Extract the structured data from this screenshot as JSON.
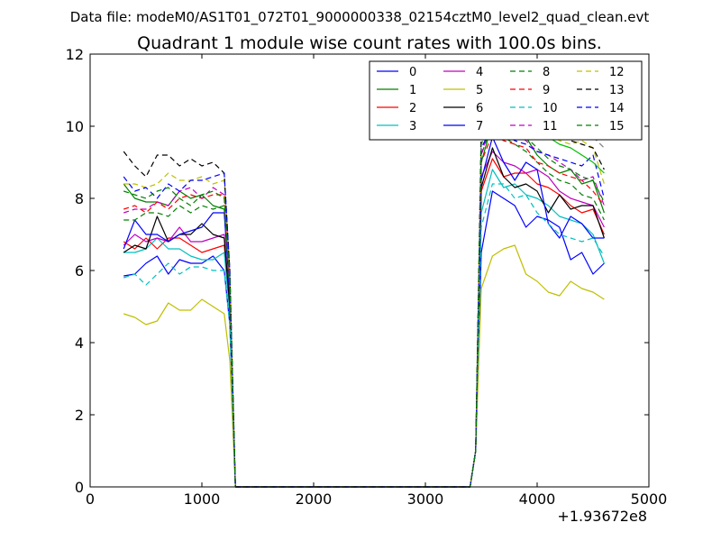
{
  "chart_data": {
    "type": "line",
    "suptitle": "Data file: modeM0/AS1T01_072T01_9000000338_02154cztM0_level2_quad_clean.evt",
    "title": "Quadrant 1 module wise count rates with 100.0s bins.",
    "xlabel": "",
    "ylabel": "",
    "x_offset_label": "+1.93672e8",
    "xlim": [
      0,
      5000
    ],
    "ylim": [
      0,
      12
    ],
    "x_ticks": [
      0,
      1000,
      2000,
      3000,
      4000,
      5000
    ],
    "y_ticks": [
      0,
      2,
      4,
      6,
      8,
      10,
      12
    ],
    "x_tick_labels": [
      "0",
      "1000",
      "2000",
      "3000",
      "4000",
      "5000"
    ],
    "y_tick_labels": [
      "0",
      "2",
      "4",
      "6",
      "8",
      "10",
      "12"
    ],
    "legend_position": "upper-right",
    "legend_columns": 4,
    "grid": false,
    "x": [
      300,
      400,
      500,
      600,
      700,
      800,
      900,
      1000,
      1100,
      1200,
      1250,
      1300,
      1400,
      1500,
      1600,
      1700,
      1800,
      1900,
      2000,
      2100,
      2200,
      2300,
      2400,
      2500,
      2600,
      2700,
      2800,
      2900,
      3000,
      3100,
      3200,
      3300,
      3400,
      3450,
      3500,
      3600,
      3700,
      3800,
      3900,
      4000,
      4100,
      4200,
      4300,
      4400,
      4500,
      4600
    ],
    "series": [
      {
        "name": "0",
        "color": "#0000ff",
        "dash": "solid",
        "values": [
          5.85,
          5.9,
          6.2,
          6.4,
          5.9,
          6.3,
          6.2,
          6.2,
          6.4,
          6.0,
          4.5,
          0,
          0,
          0,
          0,
          0,
          0,
          0,
          0,
          0,
          0,
          0,
          0,
          0,
          0,
          0,
          0,
          0,
          0,
          0,
          0,
          0,
          0,
          1,
          6.5,
          8.2,
          8.0,
          7.8,
          7.2,
          7.5,
          7.4,
          7.2,
          6.3,
          6.5,
          5.9,
          6.2
        ]
      },
      {
        "name": "1",
        "color": "#008000",
        "dash": "solid",
        "values": [
          8.4,
          8.0,
          7.9,
          7.9,
          7.8,
          8.2,
          8.0,
          8.1,
          7.8,
          7.7,
          5.5,
          0,
          0,
          0,
          0,
          0,
          0,
          0,
          0,
          0,
          0,
          0,
          0,
          0,
          0,
          0,
          0,
          0,
          0,
          0,
          0,
          0,
          0,
          1,
          9.0,
          10.1,
          9.8,
          10.0,
          9.7,
          9.2,
          8.9,
          8.7,
          8.8,
          8.4,
          8.5,
          7.6
        ]
      },
      {
        "name": "2",
        "color": "#ff0000",
        "dash": "solid",
        "values": [
          6.8,
          6.6,
          6.9,
          6.6,
          6.9,
          6.9,
          6.7,
          6.5,
          6.6,
          6.7,
          5.0,
          0,
          0,
          0,
          0,
          0,
          0,
          0,
          0,
          0,
          0,
          0,
          0,
          0,
          0,
          0,
          0,
          0,
          0,
          0,
          0,
          0,
          0,
          1,
          8.2,
          9.1,
          8.6,
          8.7,
          8.7,
          8.4,
          8.3,
          8.1,
          7.8,
          7.6,
          7.7,
          7.0
        ]
      },
      {
        "name": "3",
        "color": "#00bfbf",
        "dash": "solid",
        "values": [
          6.5,
          6.5,
          6.6,
          6.9,
          6.6,
          6.6,
          6.4,
          6.3,
          6.3,
          6.5,
          4.8,
          0,
          0,
          0,
          0,
          0,
          0,
          0,
          0,
          0,
          0,
          0,
          0,
          0,
          0,
          0,
          0,
          0,
          0,
          0,
          0,
          0,
          0,
          1,
          7.6,
          8.8,
          8.3,
          8.4,
          8.1,
          8.0,
          7.8,
          7.5,
          7.4,
          7.3,
          7.0,
          6.2
        ]
      },
      {
        "name": "4",
        "color": "#bf00bf",
        "dash": "solid",
        "values": [
          6.7,
          7.0,
          6.8,
          6.9,
          6.8,
          7.2,
          6.8,
          6.8,
          6.9,
          7.0,
          5.0,
          0,
          0,
          0,
          0,
          0,
          0,
          0,
          0,
          0,
          0,
          0,
          0,
          0,
          0,
          0,
          0,
          0,
          0,
          0,
          0,
          0,
          0,
          1,
          8.6,
          9.3,
          9.0,
          8.9,
          8.7,
          8.8,
          8.6,
          8.2,
          8.0,
          7.9,
          7.8,
          7.2
        ]
      },
      {
        "name": "5",
        "color": "#bfbf00",
        "dash": "solid",
        "values": [
          4.8,
          4.7,
          4.5,
          4.6,
          5.1,
          4.9,
          4.9,
          5.2,
          5.0,
          4.8,
          3.5,
          0,
          0,
          0,
          0,
          0,
          0,
          0,
          0,
          0,
          0,
          0,
          0,
          0,
          0,
          0,
          0,
          0,
          0,
          0,
          0,
          0,
          0,
          1,
          5.5,
          6.4,
          6.6,
          6.7,
          5.9,
          5.7,
          5.4,
          5.3,
          5.7,
          5.5,
          5.4,
          5.2
        ]
      },
      {
        "name": "6",
        "color": "#000000",
        "dash": "solid",
        "values": [
          6.5,
          6.7,
          6.6,
          7.5,
          6.8,
          7.0,
          7.0,
          7.3,
          7.0,
          6.9,
          5.0,
          0,
          0,
          0,
          0,
          0,
          0,
          0,
          0,
          0,
          0,
          0,
          0,
          0,
          0,
          0,
          0,
          0,
          0,
          0,
          0,
          0,
          0,
          1,
          8.3,
          9.4,
          8.6,
          8.3,
          8.4,
          8.2,
          7.6,
          8.1,
          7.7,
          7.8,
          7.8,
          6.9
        ]
      },
      {
        "name": "7",
        "color": "#0000ff",
        "dash": "solid",
        "values": [
          6.6,
          7.4,
          7.0,
          7.0,
          6.8,
          7.0,
          7.1,
          7.2,
          7.6,
          7.6,
          5.3,
          0,
          0,
          0,
          0,
          0,
          0,
          0,
          0,
          0,
          0,
          0,
          0,
          0,
          0,
          0,
          0,
          0,
          0,
          0,
          0,
          0,
          0,
          1,
          8.5,
          9.7,
          9.0,
          8.5,
          9.0,
          8.8,
          7.3,
          6.9,
          7.5,
          7.3,
          6.9,
          6.9
        ]
      },
      {
        "name": "8",
        "color": "#008000",
        "dash": "dashed",
        "values": [
          7.4,
          7.4,
          7.6,
          7.6,
          7.5,
          7.8,
          7.6,
          7.8,
          7.7,
          7.8,
          5.4,
          0,
          0,
          0,
          0,
          0,
          0,
          0,
          0,
          0,
          0,
          0,
          0,
          0,
          0,
          0,
          0,
          0,
          0,
          0,
          0,
          0,
          0,
          1,
          9.2,
          10.1,
          9.7,
          9.5,
          9.3,
          9.0,
          8.7,
          8.5,
          8.4,
          8.1,
          8.0,
          7.4
        ]
      },
      {
        "name": "9",
        "color": "#ff0000",
        "dash": "dashed",
        "values": [
          7.7,
          7.8,
          7.6,
          7.9,
          7.7,
          8.0,
          8.1,
          8.0,
          8.1,
          8.1,
          5.6,
          0,
          0,
          0,
          0,
          0,
          0,
          0,
          0,
          0,
          0,
          0,
          0,
          0,
          0,
          0,
          0,
          0,
          0,
          0,
          0,
          0,
          0,
          1,
          9.0,
          9.8,
          9.6,
          9.5,
          9.4,
          9.0,
          8.9,
          8.7,
          8.6,
          8.5,
          8.2,
          7.8
        ]
      },
      {
        "name": "10",
        "color": "#00bfbf",
        "dash": "dashed",
        "values": [
          5.8,
          5.9,
          5.6,
          5.9,
          6.2,
          5.9,
          6.1,
          6.1,
          6.0,
          6.0,
          4.5,
          0,
          0,
          0,
          0,
          0,
          0,
          0,
          0,
          0,
          0,
          0,
          0,
          0,
          0,
          0,
          0,
          0,
          0,
          0,
          0,
          0,
          0,
          1,
          7.2,
          8.4,
          8.4,
          8.0,
          8.1,
          7.6,
          7.3,
          7.0,
          6.9,
          6.8,
          6.9,
          6.4
        ]
      },
      {
        "name": "11",
        "color": "#bf00bf",
        "dash": "dashed",
        "values": [
          7.6,
          7.7,
          7.7,
          7.9,
          7.8,
          8.2,
          8.3,
          8.0,
          8.3,
          8.1,
          5.7,
          0,
          0,
          0,
          0,
          0,
          0,
          0,
          0,
          0,
          0,
          0,
          0,
          0,
          0,
          0,
          0,
          0,
          0,
          0,
          0,
          0,
          0,
          1,
          9.2,
          10.3,
          9.9,
          9.8,
          9.6,
          9.3,
          9.2,
          9.0,
          8.8,
          8.5,
          8.6,
          7.8
        ]
      },
      {
        "name": "12",
        "color": "#bfbf00",
        "dash": "dashed",
        "values": [
          8.4,
          8.4,
          8.3,
          8.4,
          8.7,
          8.5,
          8.5,
          8.6,
          8.4,
          8.5,
          5.8,
          0,
          0,
          0,
          0,
          0,
          0,
          0,
          0,
          0,
          0,
          0,
          0,
          0,
          0,
          0,
          0,
          0,
          0,
          0,
          0,
          0,
          0,
          1,
          9.8,
          10.7,
          10.5,
          10.3,
          10.0,
          10.0,
          9.8,
          9.6,
          9.5,
          9.6,
          9.4,
          8.4
        ]
      },
      {
        "name": "13",
        "color": "#000000",
        "dash": "dashed",
        "values": [
          9.3,
          8.9,
          8.6,
          9.2,
          9.2,
          8.9,
          9.1,
          8.9,
          9.0,
          8.7,
          6.0,
          0,
          0,
          0,
          0,
          0,
          0,
          0,
          0,
          0,
          0,
          0,
          0,
          0,
          0,
          0,
          0,
          0,
          0,
          0,
          0,
          0,
          0,
          1,
          10.0,
          11.0,
          10.8,
          10.5,
          10.4,
          10.2,
          10.0,
          9.8,
          9.6,
          9.5,
          9.4,
          8.8
        ]
      },
      {
        "name": "14",
        "color": "#0000ff",
        "dash": "dashed",
        "values": [
          8.6,
          8.2,
          8.3,
          8.0,
          8.4,
          8.2,
          8.5,
          8.5,
          8.6,
          8.7,
          6.0,
          0,
          0,
          0,
          0,
          0,
          0,
          0,
          0,
          0,
          0,
          0,
          0,
          0,
          0,
          0,
          0,
          0,
          0,
          0,
          0,
          0,
          0,
          1,
          9.4,
          10.0,
          9.8,
          9.6,
          9.5,
          9.3,
          9.2,
          9.1,
          9.0,
          8.9,
          9.2,
          8.0
        ]
      },
      {
        "name": "15",
        "color": "#008000",
        "dash": "dashed",
        "values": [
          8.2,
          8.1,
          8.0,
          8.2,
          8.3,
          8.0,
          7.8,
          8.1,
          8.2,
          8.0,
          5.8,
          0,
          0,
          0,
          0,
          0,
          0,
          0,
          0,
          0,
          0,
          0,
          0,
          0,
          0,
          0,
          0,
          0,
          0,
          0,
          0,
          0,
          0,
          1,
          9.5,
          10.3,
          10.0,
          9.9,
          9.7,
          9.4,
          9.1,
          8.9,
          8.8,
          8.6,
          8.5,
          7.9
        ]
      },
      {
        "name": "",
        "color": "#808080",
        "dash": "dashed",
        "values": [
          null,
          null,
          null,
          null,
          null,
          null,
          null,
          null,
          null,
          null,
          null,
          null,
          null,
          null,
          null,
          null,
          null,
          null,
          null,
          null,
          null,
          null,
          null,
          null,
          null,
          null,
          null,
          null,
          null,
          null,
          null,
          null,
          null,
          null,
          null,
          11.0,
          11.3,
          11.0,
          10.7,
          10.7,
          10.3,
          10.2,
          10.0,
          9.8,
          9.7,
          9.4
        ]
      },
      {
        "name": "",
        "color": "#00bf00",
        "dash": "solid",
        "values": [
          null,
          null,
          null,
          null,
          null,
          null,
          null,
          null,
          null,
          null,
          null,
          null,
          null,
          null,
          null,
          null,
          null,
          null,
          null,
          null,
          null,
          null,
          null,
          null,
          null,
          null,
          null,
          null,
          null,
          null,
          null,
          null,
          null,
          null,
          null,
          10.6,
          10.5,
          10.4,
          10.1,
          9.9,
          9.7,
          9.5,
          9.4,
          9.2,
          9.0,
          8.7
        ]
      }
    ]
  }
}
